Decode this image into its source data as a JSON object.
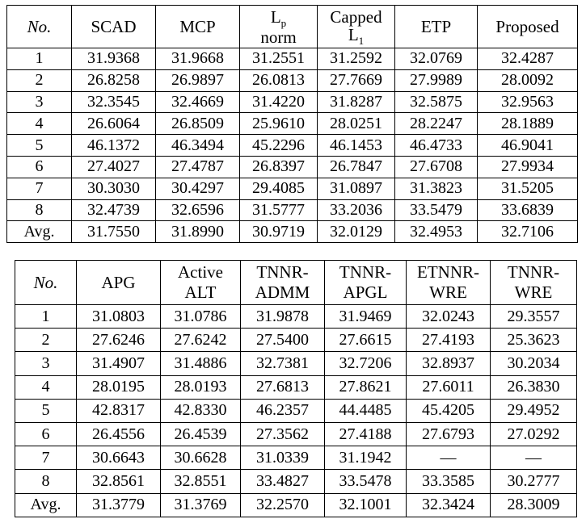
{
  "table1": {
    "headers": {
      "no": "No.",
      "scad": "SCAD",
      "mcp": "MCP",
      "lp_base": "L",
      "lp_sub": "p",
      "lp_suffix": "norm",
      "capped": "Capped",
      "l1_base": "L",
      "l1_sub": "1",
      "etp": "ETP",
      "proposed": "Proposed"
    },
    "rows": [
      [
        "1",
        "31.9368",
        "31.9668",
        "31.2551",
        "31.2592",
        "32.0769",
        "32.4287"
      ],
      [
        "2",
        "26.8258",
        "26.9897",
        "26.0813",
        "27.7669",
        "27.9989",
        "28.0092"
      ],
      [
        "3",
        "32.3545",
        "32.4669",
        "31.4220",
        "31.8287",
        "32.5875",
        "32.9563"
      ],
      [
        "4",
        "26.6064",
        "26.8509",
        "25.9610",
        "28.0251",
        "28.2247",
        "28.1889"
      ],
      [
        "5",
        "46.1372",
        "46.3494",
        "45.2296",
        "46.1453",
        "46.4733",
        "46.9041"
      ],
      [
        "6",
        "27.4027",
        "27.4787",
        "26.8397",
        "26.7847",
        "27.6708",
        "27.9934"
      ],
      [
        "7",
        "30.3030",
        "30.4297",
        "29.4085",
        "31.0897",
        "31.3823",
        "31.5205"
      ],
      [
        "8",
        "32.4739",
        "32.6596",
        "31.5777",
        "33.2036",
        "33.5479",
        "33.6839"
      ],
      [
        "Avg.",
        "31.7550",
        "31.8990",
        "30.9719",
        "32.0129",
        "32.4953",
        "32.7106"
      ]
    ]
  },
  "table2": {
    "headers": {
      "no": "No.",
      "apg": "APG",
      "active_l1": "Active",
      "active_l2": "ALT",
      "tnnr_admm_l1": "TNNR-",
      "tnnr_admm_l2": "ADMM",
      "tnnr_apgl_l1": "TNNR-",
      "tnnr_apgl_l2": "APGL",
      "etnnr_l1": "ETNNR-",
      "etnnr_l2": "WRE",
      "tnnr_wre_l1": "TNNR-",
      "tnnr_wre_l2": "WRE"
    },
    "rows": [
      [
        "1",
        "31.0803",
        "31.0786",
        "31.9878",
        "31.9469",
        "32.0243",
        "29.3557"
      ],
      [
        "2",
        "27.6246",
        "27.6242",
        "27.5400",
        "27.6615",
        "27.4193",
        "25.3623"
      ],
      [
        "3",
        "31.4907",
        "31.4886",
        "32.7381",
        "32.7206",
        "32.8937",
        "30.2034"
      ],
      [
        "4",
        "28.0195",
        "28.0193",
        "27.6813",
        "27.8621",
        "27.6011",
        "26.3830"
      ],
      [
        "5",
        "42.8317",
        "42.8330",
        "46.2357",
        "44.4485",
        "45.4205",
        "29.4952"
      ],
      [
        "6",
        "26.4556",
        "26.4539",
        "27.3562",
        "27.4188",
        "27.6793",
        "27.0292"
      ],
      [
        "7",
        "30.6643",
        "30.6628",
        "31.0339",
        "31.1942",
        "—",
        "—"
      ],
      [
        "8",
        "32.8561",
        "32.8551",
        "33.4827",
        "33.5478",
        "33.3585",
        "30.2777"
      ],
      [
        "Avg.",
        "31.3779",
        "31.3769",
        "32.2570",
        "32.1001",
        "32.3424",
        "28.3009"
      ]
    ]
  },
  "bold_cells": {
    "table1": [
      [
        0,
        6
      ],
      [
        1,
        6
      ],
      [
        2,
        6
      ],
      [
        3,
        5
      ],
      [
        3,
        6
      ],
      [
        4,
        6
      ],
      [
        5,
        6
      ],
      [
        6,
        6
      ],
      [
        7,
        6
      ],
      [
        8,
        6
      ]
    ]
  }
}
